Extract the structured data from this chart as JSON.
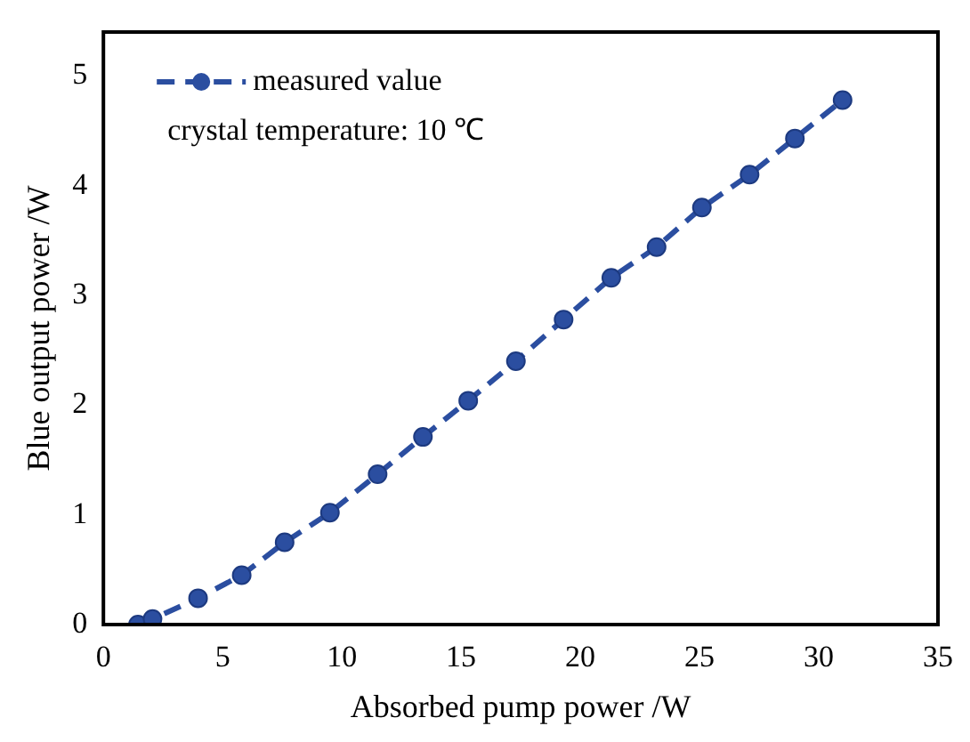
{
  "chart_data": {
    "type": "line",
    "xlabel": "Absorbed pump power /W",
    "ylabel": "Blue output power /W",
    "xlim": [
      0,
      35
    ],
    "xticks": [
      0,
      5,
      10,
      15,
      20,
      25,
      30,
      35
    ],
    "ylim": [
      0,
      5.4
    ],
    "yticks": [
      0,
      1,
      2,
      3,
      4,
      5
    ],
    "grid": false,
    "legend": "top left",
    "marker": "circle",
    "line_style": "dashed",
    "annotations": [
      "crystal temperature: 10 ℃"
    ],
    "series": [
      {
        "name": "measured value",
        "color": "#2b4ea0",
        "x": [
          1.45,
          2.06,
          3.97,
          5.8,
          7.6,
          9.5,
          11.5,
          13.4,
          15.3,
          17.3,
          19.3,
          21.3,
          23.2,
          25.1,
          27.1,
          29.0,
          31.0
        ],
        "values": [
          0,
          0.05,
          0.24,
          0.45,
          0.75,
          1.02,
          1.37,
          1.71,
          2.04,
          2.4,
          2.78,
          3.16,
          3.44,
          3.8,
          4.1,
          4.43,
          4.78
        ]
      }
    ]
  }
}
